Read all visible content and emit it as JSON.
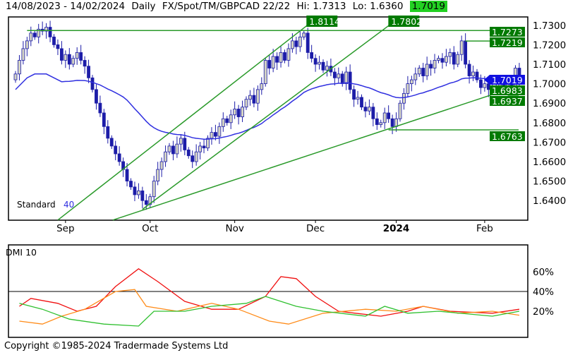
{
  "header": {
    "range": "14/08/2023 - 14/02/2024",
    "period": "Daily",
    "symbol": "FX/Spot/TM/GBPCAD 22/22",
    "hi": "Hi: 1.7313",
    "lo": "Lo: 1.6360",
    "last": "1.7019"
  },
  "footer": "Copyright ©1985-2024 Tradermade Systems Ltd",
  "colors": {
    "up": "#d4d4c4",
    "down": "#1c1ca8",
    "ma": "#3030e0",
    "trend": "#2a9a2a",
    "label": "#007a00",
    "dmi_red": "#f01010",
    "dmi_orange": "#ff8c1a",
    "dmi_green": "#30c030"
  },
  "chart_data": [
    {
      "type": "candlestick",
      "ylim": [
        1.63,
        1.733
      ],
      "yticks": [
        "1.7300",
        "1.7200",
        "1.7100",
        "1.7000",
        "1.6900",
        "1.6800",
        "1.6700",
        "1.6600",
        "1.6500",
        "1.6400"
      ],
      "xticks": [
        {
          "label": "Sep",
          "day": 13
        },
        {
          "label": "Oct",
          "day": 35
        },
        {
          "label": "Nov",
          "day": 57
        },
        {
          "label": "Dec",
          "day": 78
        },
        {
          "label": "2024",
          "day": 99,
          "bold": true
        },
        {
          "label": "Feb",
          "day": 122
        }
      ],
      "closes": [
        1.705,
        1.712,
        1.718,
        1.722,
        1.726,
        1.724,
        1.728,
        1.727,
        1.729,
        1.724,
        1.72,
        1.718,
        1.712,
        1.715,
        1.71,
        1.713,
        1.716,
        1.712,
        1.709,
        1.703,
        1.697,
        1.69,
        1.685,
        1.678,
        1.672,
        1.668,
        1.664,
        1.66,
        1.656,
        1.65,
        1.647,
        1.643,
        1.645,
        1.64,
        1.638,
        1.642,
        1.65,
        1.656,
        1.66,
        1.665,
        1.668,
        1.664,
        1.669,
        1.672,
        1.666,
        1.663,
        1.66,
        1.665,
        1.668,
        1.667,
        1.672,
        1.675,
        1.673,
        1.678,
        1.682,
        1.68,
        1.684,
        1.687,
        1.683,
        1.688,
        1.692,
        1.694,
        1.69,
        1.697,
        1.7,
        1.712,
        1.708,
        1.714,
        1.711,
        1.716,
        1.712,
        1.718,
        1.722,
        1.719,
        1.724,
        1.726,
        1.716,
        1.713,
        1.71,
        1.711,
        1.707,
        1.709,
        1.706,
        1.703,
        1.705,
        1.7,
        1.706,
        1.697,
        1.692,
        1.693,
        1.688,
        1.686,
        1.688,
        1.682,
        1.679,
        1.68,
        1.685,
        1.682,
        1.678,
        1.682,
        1.69,
        1.695,
        1.7,
        1.702,
        1.705,
        1.708,
        1.704,
        1.71,
        1.708,
        1.712,
        1.713,
        1.711,
        1.714,
        1.716,
        1.71,
        1.715,
        1.722,
        1.71,
        1.704,
        1.706,
        1.702,
        1.698,
        1.7,
        1.697,
        1.699,
        1.698,
        1.7,
        1.699,
        1.7,
        1.698,
        1.708,
        1.7019
      ],
      "indicator": "Standard",
      "indicator_period": "40",
      "hlines": [
        {
          "price": 1.7273,
          "from": 3,
          "label": "1.7273"
        },
        {
          "price": 1.7219,
          "from": 117,
          "label": "1.7219"
        },
        {
          "price": 1.6763,
          "from": 97,
          "label": "1.6763"
        },
        {
          "price": 1.6937,
          "from": 128,
          "label": "1.6937"
        }
      ],
      "trendlines": [
        {
          "d1": 11,
          "p1": 1.63,
          "d2": 76.2,
          "p2": 1.7305,
          "label": "1.8114"
        },
        {
          "d1": 33,
          "p1": 1.6355,
          "d2": 97.5,
          "p2": 1.7305,
          "label": "1.7802"
        },
        {
          "d1": 25.3,
          "p1": 1.63,
          "d2": 131,
          "p2": 1.699,
          "label": "1.6983"
        }
      ],
      "price_marker": "1.7019"
    },
    {
      "type": "line",
      "title": "DMI 10",
      "ylim": [
        0,
        70
      ],
      "yticks": [
        "60%",
        "40%",
        "20%"
      ],
      "series": [
        {
          "color": "red",
          "points": [
            [
              1,
              25
            ],
            [
              4,
              33
            ],
            [
              11,
              28
            ],
            [
              16,
              20
            ],
            [
              21,
              25
            ],
            [
              26,
              45
            ],
            [
              32,
              63
            ],
            [
              37,
              50
            ],
            [
              44,
              30
            ],
            [
              51,
              22
            ],
            [
              58,
              22
            ],
            [
              65,
              35
            ],
            [
              69,
              55
            ],
            [
              73,
              53
            ],
            [
              78,
              35
            ],
            [
              84,
              20
            ],
            [
              95,
              15
            ],
            [
              102,
              20
            ],
            [
              106,
              25
            ],
            [
              113,
              20
            ],
            [
              124,
              18
            ],
            [
              131,
              22
            ]
          ]
        },
        {
          "color": "orange",
          "points": [
            [
              1,
              10
            ],
            [
              7,
              7
            ],
            [
              12,
              15
            ],
            [
              18,
              22
            ],
            [
              26,
              40
            ],
            [
              31,
              42
            ],
            [
              34,
              25
            ],
            [
              42,
              20
            ],
            [
              51,
              28
            ],
            [
              58,
              22
            ],
            [
              66,
              10
            ],
            [
              71,
              7
            ],
            [
              80,
              18
            ],
            [
              91,
              22
            ],
            [
              99,
              20
            ],
            [
              106,
              25
            ],
            [
              115,
              18
            ],
            [
              124,
              20
            ],
            [
              131,
              16
            ]
          ]
        },
        {
          "color": "green",
          "points": [
            [
              1,
              28
            ],
            [
              7,
              22
            ],
            [
              14,
              12
            ],
            [
              23,
              7
            ],
            [
              32,
              5
            ],
            [
              36,
              20
            ],
            [
              44,
              20
            ],
            [
              51,
              25
            ],
            [
              60,
              28
            ],
            [
              65,
              35
            ],
            [
              73,
              25
            ],
            [
              80,
              20
            ],
            [
              91,
              15
            ],
            [
              96,
              25
            ],
            [
              102,
              18
            ],
            [
              110,
              20
            ],
            [
              124,
              15
            ],
            [
              131,
              20
            ]
          ]
        }
      ]
    }
  ]
}
